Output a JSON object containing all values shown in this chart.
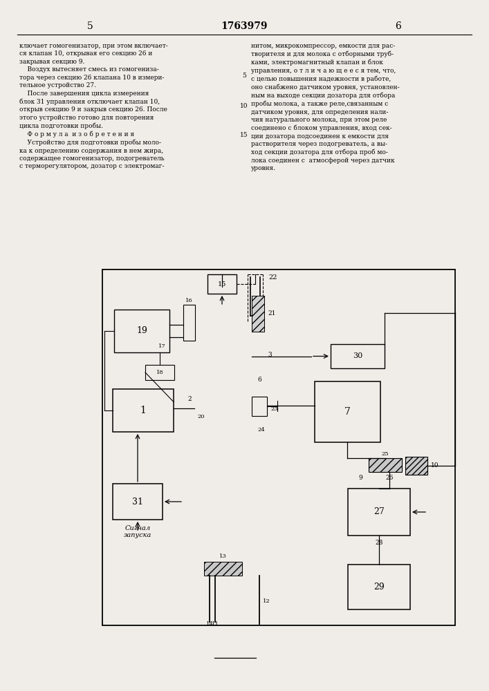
{
  "page_width": 7.07,
  "page_height": 10.0,
  "background_color": "#f0ede8",
  "header_left_num": "5",
  "header_center_num": "1763979",
  "header_right_num": "6",
  "text_left": "ключает гомогенизатор, при этом включает-\nся клапан 10, открывая его секцию 26 и\nзакрывая секцию 9.\n    Воздух вытесняет смесь из гомогениза-\nтора через секцию 26 клапана 10 в измери-\nтельное устройство 27.\n    После завершения цикла измерения\nблок 31 управления отключает клапан 10,\nоткрыв секцию 9 и закрыв секцию 26. После\nэтого устройство готово для повторения\nцикла подготовки пробы.\n    Ф о р м у л а  и з о б р е т е н и я\n    Устройство для подготовки пробы моло-\nка к определению содержания в нем жира,\nсодержащее гомогенизатор, подогреватель\nс терморегулятором, дозатор с электромаг-",
  "text_right": "нитом, микрокомпрессор, емкости для рас-\nтворителя и для молока с отборными труб-\nками, электромагнитный клапан и блок\nуправления, о т л и ч а ю щ е е с я тем, что,\nс целью повышения надежности в работе,\nоно снабжено датчиком уровня, установлен-\nным на выходе секции дозатора для отбора\nпробы молока, а также реле,связанным с\nдатчиком уровня, для определения нали-\nчия натурального молока, при этом реле\nсоединено с блоком управления, вход сек-\nции дозатора подсоединен к емкости для\nрастворителя через подогреватель, а вы-\nход секции дозатора для отбора проб мо-\nлока соединен с  атмосферой через датчик\nуровня.",
  "signal_text": "Сигнал\nзапуска"
}
